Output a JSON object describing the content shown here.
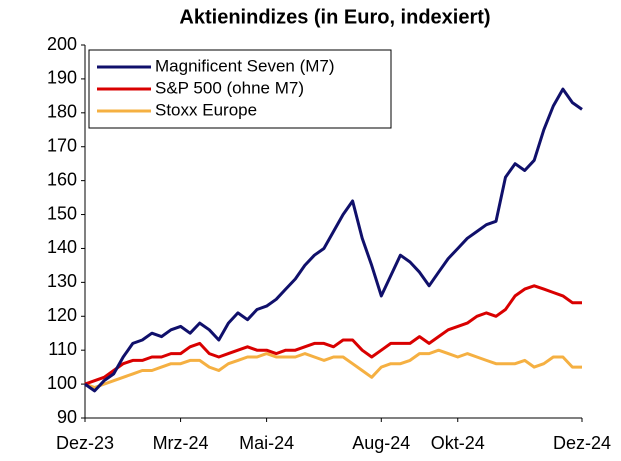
{
  "chart_data": {
    "type": "line",
    "title": "Aktienindizes (in Euro, indexiert)",
    "categories": [
      "Dez-23",
      null,
      null,
      null,
      null,
      null,
      null,
      null,
      null,
      null,
      "Mrz-24",
      null,
      null,
      null,
      null,
      null,
      null,
      null,
      null,
      "Mai-24",
      null,
      null,
      null,
      null,
      null,
      null,
      null,
      null,
      null,
      null,
      null,
      "Aug-24",
      null,
      null,
      null,
      null,
      null,
      null,
      null,
      "Okt-24",
      null,
      null,
      null,
      null,
      null,
      null,
      null,
      null,
      null,
      null,
      null,
      null,
      "Dez-24"
    ],
    "series": [
      {
        "name": "Magnificent Seven (M7)",
        "color": "#10106b",
        "values": [
          100,
          98,
          101,
          103,
          108,
          112,
          113,
          115,
          114,
          116,
          117,
          115,
          118,
          116,
          113,
          118,
          121,
          119,
          122,
          123,
          125,
          128,
          131,
          135,
          138,
          140,
          145,
          150,
          154,
          143,
          135,
          126,
          132,
          138,
          136,
          133,
          129,
          133,
          137,
          140,
          143,
          145,
          147,
          148,
          161,
          165,
          163,
          166,
          175,
          182,
          187,
          183,
          181
        ]
      },
      {
        "name": "S&P 500 (ohne M7)",
        "color": "#d90000",
        "values": [
          100,
          101,
          102,
          104,
          106,
          107,
          107,
          108,
          108,
          109,
          109,
          111,
          112,
          109,
          108,
          109,
          110,
          111,
          110,
          110,
          109,
          110,
          110,
          111,
          112,
          112,
          111,
          113,
          113,
          110,
          108,
          110,
          112,
          112,
          112,
          114,
          112,
          114,
          116,
          117,
          118,
          120,
          121,
          120,
          122,
          126,
          128,
          129,
          128,
          127,
          126,
          124,
          124
        ]
      },
      {
        "name": "Stoxx Europe",
        "color": "#f5b042",
        "values": [
          100,
          99,
          100,
          101,
          102,
          103,
          104,
          104,
          105,
          106,
          106,
          107,
          107,
          105,
          104,
          106,
          107,
          108,
          108,
          109,
          108,
          108,
          108,
          109,
          108,
          107,
          108,
          108,
          106,
          104,
          102,
          105,
          106,
          106,
          107,
          109,
          109,
          110,
          109,
          108,
          109,
          108,
          107,
          106,
          106,
          106,
          107,
          105,
          106,
          108,
          108,
          105,
          105
        ]
      }
    ],
    "ylim": [
      90,
      200
    ],
    "yticks": [
      90,
      100,
      110,
      120,
      130,
      140,
      150,
      160,
      170,
      180,
      190,
      200
    ],
    "grid": false,
    "legend": "upper left"
  }
}
